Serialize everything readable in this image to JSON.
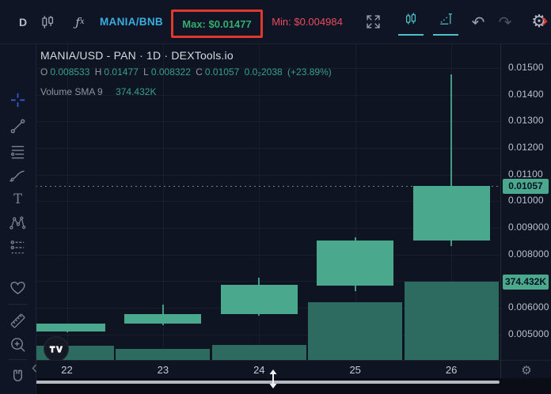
{
  "topbar": {
    "timeframe": "D",
    "indicators_f": "ƒ",
    "indicators_x": "x",
    "symbol": "MANIA/BNB",
    "max_label": "Max: $0.01477",
    "min_label": "Min: $0.004984",
    "undo_glyph": "↶",
    "redo_glyph": "↷",
    "gear_glyph": "⚙",
    "icons": [
      "chart-style-candles",
      "indicators-fx",
      "fullscreen",
      "candles-view",
      "bars-chart-view",
      "undo",
      "redo",
      "settings-gear"
    ]
  },
  "sidebar": {
    "tools": [
      "crosshair",
      "trend-line",
      "fib-retracement",
      "brush",
      "text",
      "xabcd-pattern",
      "forecast-lines",
      "favorites-heart",
      "measure-ruler",
      "zoom-in",
      "magnet",
      "draw-lock"
    ]
  },
  "legend": {
    "title": "MANIA/USD - PAN · 1D · DEXTools.io",
    "o_key": "O",
    "o_val": "0.008533",
    "h_key": "H",
    "h_val": "0.01477",
    "l_key": "L",
    "l_val": "0.008322",
    "c_key": "C",
    "c_val": "0.01057",
    "change": "0.0₂2038",
    "change_pct": "(+23.89%)",
    "volume_label": "Volume SMA 9",
    "volume_value": "374.432K"
  },
  "price_axis": {
    "ticks": [
      "0.01500",
      "0.01400",
      "0.01300",
      "0.01200",
      "0.01100",
      "0.01000",
      "0.009000",
      "0.008000",
      "0.006000",
      "0.005000"
    ],
    "close_badge": "0.01057",
    "volume_badge": "374.432K"
  },
  "time_axis": {
    "ticks": [
      "22",
      "23",
      "24",
      "25",
      "26"
    ]
  },
  "chart_data": {
    "type": "candlestick",
    "title": "MANIA/USD - PAN · 1D · DEXTools.io",
    "symbol": "MANIA/USD",
    "exchange": "PAN",
    "interval": "1D",
    "source": "DEXTools.io",
    "x": [
      "22",
      "23",
      "24",
      "25",
      "26"
    ],
    "candles": [
      {
        "t": "22",
        "o": 0.00511,
        "h": 0.00542,
        "l": 0.00508,
        "c": 0.0054,
        "volume_k": 68
      },
      {
        "t": "23",
        "o": 0.0054,
        "h": 0.00612,
        "l": 0.00536,
        "c": 0.00576,
        "volume_k": 53
      },
      {
        "t": "24",
        "o": 0.00576,
        "h": 0.00713,
        "l": 0.00572,
        "c": 0.00686,
        "volume_k": 72
      },
      {
        "t": "25",
        "o": 0.00683,
        "h": 0.00865,
        "l": 0.00662,
        "c": 0.00852,
        "volume_k": 276
      },
      {
        "t": "26",
        "o": 0.008533,
        "h": 0.01477,
        "l": 0.008322,
        "c": 0.01057,
        "volume_k": 375
      }
    ],
    "last_close": 0.01057,
    "volume_sma_9_k": 374.432,
    "grid_prices": [
      0.005,
      0.006,
      0.007,
      0.008,
      0.009,
      0.01,
      0.011,
      0.012,
      0.013,
      0.014,
      0.015
    ],
    "price_max_visible": 0.01592,
    "price_min_visible": 0.00404,
    "grid": true,
    "legend_position": "top-left",
    "all_candles_direction": "up"
  },
  "colors": {
    "up_candle": "#4aa88c",
    "volume_bar": "#2d6b60",
    "accent_teal_icons": "#4fc0c8",
    "symbol_blue": "#3aadde",
    "max_green": "#35ad6d",
    "min_red": "#ea4b5f",
    "annotation_box_red": "#e0392b",
    "axis_badge_bg": "#4aa88c",
    "background": "#0e1421"
  }
}
